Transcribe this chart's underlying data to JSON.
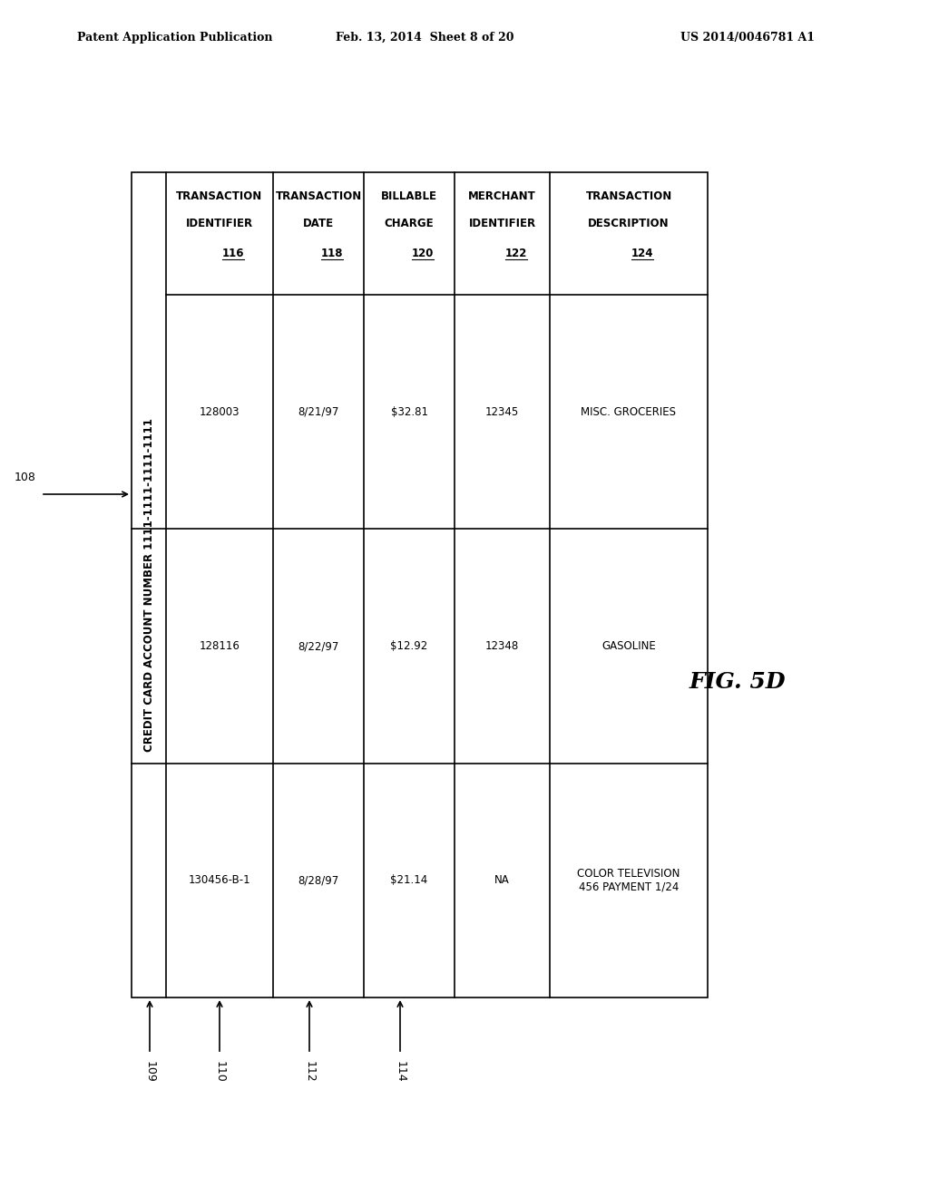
{
  "header_text": "Patent Application Publication",
  "header_date": "Feb. 13, 2014  Sheet 8 of 20",
  "header_patent": "US 2014/0046781 A1",
  "fig_label": "FIG. 5D",
  "account_label": "CREDIT CARD ACCOUNT NUMBER 1111-1111-1111-1111",
  "table_ref": "108",
  "outer_ref": "109",
  "row_refs": [
    "110",
    "112",
    "114"
  ],
  "col_headers": [
    [
      "TRANSACTION",
      "IDENTIFIER",
      "116"
    ],
    [
      "TRANSACTION",
      "DATE",
      "118"
    ],
    [
      "BILLABLE",
      "CHARGE",
      "120"
    ],
    [
      "MERCHANT",
      "IDENTIFIER",
      "122"
    ],
    [
      "TRANSACTION",
      "DESCRIPTION",
      "124"
    ]
  ],
  "rows": [
    [
      "128003",
      "8/21/97",
      "$32.81",
      "12345",
      "MISC. GROCERIES"
    ],
    [
      "128116",
      "8/22/97",
      "$12.92",
      "12348",
      "GASOLINE"
    ],
    [
      "130456-B-1",
      "8/28/97",
      "$21.14",
      "NA",
      "COLOR TELEVISION\n456 PAYMENT 1/24"
    ]
  ],
  "bg_color": "#ffffff",
  "line_color": "#000000",
  "text_color": "#000000",
  "font_size_header": 8.5,
  "font_size_table": 8.5,
  "font_size_fig": 16
}
